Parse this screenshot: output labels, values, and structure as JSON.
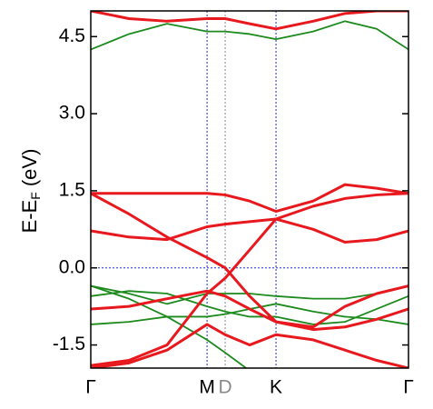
{
  "chart_data": {
    "type": "line",
    "ylabel": "E-E",
    "ylabel_sub": "F",
    "ylabel_unit": "(eV)",
    "x": [
      0,
      0.12,
      0.24,
      0.366,
      0.423,
      0.5,
      0.583,
      0.7,
      0.8,
      0.9,
      1
    ],
    "xlim": [
      0,
      1
    ],
    "xticks": [
      {
        "value": 0,
        "label": "Γ"
      },
      {
        "value": 0.366,
        "label": "M"
      },
      {
        "value": 0.423,
        "label": "D"
      },
      {
        "value": 0.583,
        "label": "K"
      },
      {
        "value": 1,
        "label": "Γ"
      }
    ],
    "xtick_colors": [
      "#000000",
      "#000000",
      "#8a8a8a",
      "#000000",
      "#000000"
    ],
    "vline_colors": [
      null,
      "#1f2fd6",
      "#8a8a8a",
      "#1f2fd6",
      null
    ],
    "ylim": [
      -1.95,
      5.0
    ],
    "yticks": [
      {
        "value": -1.5,
        "label": "-1.5"
      },
      {
        "value": 0,
        "label": "0.0"
      },
      {
        "value": 1.5,
        "label": "1.5"
      },
      {
        "value": 3,
        "label": "3.0"
      },
      {
        "value": 4.5,
        "label": "4.5"
      }
    ],
    "hline": 0,
    "series": [
      {
        "color": "#1d8a1d",
        "values": [
          4.25,
          4.55,
          4.75,
          4.6,
          4.6,
          4.55,
          4.45,
          4.6,
          4.8,
          4.65,
          4.25
        ]
      },
      {
        "color": "#1d8a1d",
        "values": [
          -0.35,
          -0.5,
          -0.7,
          -0.5,
          -0.5,
          -0.5,
          -0.55,
          -0.6,
          -0.6,
          -0.5,
          -0.35
        ]
      },
      {
        "color": "#1d8a1d",
        "values": [
          -0.35,
          -0.6,
          -0.95,
          -1.4,
          -1.65,
          -2.0,
          null,
          null,
          null,
          null,
          null
        ]
      },
      {
        "color": "#1d8a1d",
        "values": [
          -1.1,
          -1.05,
          -0.95,
          -0.95,
          -0.9,
          -0.8,
          -0.7,
          -0.85,
          -0.95,
          -1.0,
          -1.1
        ]
      },
      {
        "color": "#1d8a1d",
        "values": [
          -0.55,
          -0.45,
          -0.5,
          -0.75,
          -0.85,
          -0.95,
          -0.95,
          -1.1,
          -1.05,
          -0.8,
          -0.55
        ]
      },
      {
        "color": "#e8191e",
        "values": [
          5.0,
          4.85,
          4.8,
          4.85,
          4.85,
          4.75,
          4.65,
          4.8,
          4.95,
          5.0,
          5.0
        ]
      },
      {
        "color": "#e8191e",
        "values": [
          1.45,
          1.45,
          1.45,
          1.45,
          1.42,
          1.3,
          1.1,
          1.3,
          1.62,
          1.55,
          1.45
        ]
      },
      {
        "color": "#e8191e",
        "values": [
          1.45,
          1.05,
          0.6,
          0.2,
          0.0,
          -0.55,
          -1.05,
          -1.15,
          -0.75,
          -0.5,
          -0.35
        ]
      },
      {
        "color": "#e8191e",
        "values": [
          0.72,
          0.6,
          0.55,
          0.8,
          0.85,
          0.9,
          0.95,
          0.75,
          0.5,
          0.55,
          0.72
        ]
      },
      {
        "color": "#e8191e",
        "values": [
          -0.8,
          -0.75,
          -0.6,
          -0.45,
          -0.55,
          -0.8,
          -1.05,
          -1.2,
          -1.15,
          -1.0,
          -0.8
        ]
      },
      {
        "color": "#e8191e",
        "values": [
          -1.9,
          -1.8,
          -1.5,
          -0.5,
          -0.2,
          0.35,
          0.95,
          1.2,
          1.35,
          1.42,
          1.45
        ]
      },
      {
        "color": "#e8191e",
        "values": [
          -1.95,
          -1.85,
          -1.6,
          -1.1,
          -1.3,
          -1.5,
          -1.3,
          -1.4,
          -1.6,
          -1.8,
          -1.95
        ]
      }
    ]
  }
}
